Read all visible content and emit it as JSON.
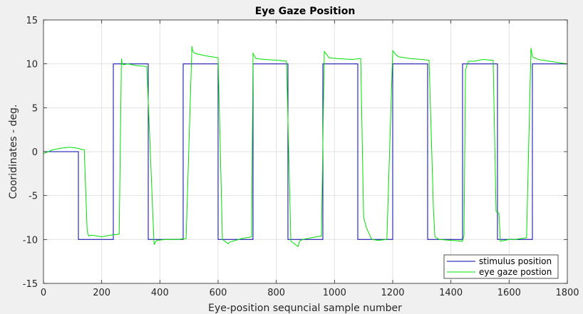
{
  "chart_data": {
    "type": "line",
    "title": "Eye Gaze Position",
    "xlabel": "Eye-position sequncial sample number",
    "ylabel": "Cooridinates - deg.",
    "xlim": [
      0,
      1800
    ],
    "ylim": [
      -15,
      15
    ],
    "xticks": [
      "0",
      "200",
      "400",
      "600",
      "800",
      "1000",
      "1200",
      "1400",
      "1600",
      "1800"
    ],
    "yticks": [
      "-15",
      "-10",
      "-5",
      "0",
      "5",
      "10",
      "15"
    ],
    "grid": true,
    "legend_position": "bottom-right",
    "series": [
      {
        "name": "stimulus position",
        "color": "#0000aa",
        "x": [
          0,
          120,
          120,
          240,
          240,
          360,
          360,
          480,
          480,
          600,
          600,
          720,
          720,
          840,
          840,
          960,
          960,
          1080,
          1080,
          1200,
          1200,
          1320,
          1320,
          1440,
          1440,
          1560,
          1560,
          1680,
          1680,
          1800
        ],
        "y": [
          0,
          0,
          -10,
          -10,
          10,
          10,
          -10,
          -10,
          10,
          10,
          -10,
          -10,
          10,
          10,
          -10,
          -10,
          10,
          10,
          -10,
          -10,
          10,
          10,
          -10,
          -10,
          10,
          10,
          -10,
          -10,
          10,
          10
        ]
      },
      {
        "name": "eye gaze postion",
        "color": "#00e000",
        "x": [
          0,
          10,
          30,
          60,
          90,
          115,
          140,
          150,
          155,
          165,
          200,
          230,
          260,
          268,
          270,
          275,
          290,
          320,
          355,
          380,
          384,
          390,
          420,
          460,
          490,
          510,
          512,
          520,
          560,
          600,
          615,
          635,
          640,
          680,
          715,
          720,
          730,
          760,
          810,
          835,
          850,
          875,
          880,
          890,
          920,
          955,
          965,
          975,
          980,
          1010,
          1060,
          1090,
          1100,
          1110,
          1125,
          1130,
          1150,
          1180,
          1200,
          1212,
          1220,
          1260,
          1300,
          1325,
          1340,
          1345,
          1360,
          1400,
          1440,
          1445,
          1450,
          1455,
          1460,
          1480,
          1510,
          1545,
          1555,
          1565,
          1570,
          1585,
          1600,
          1620,
          1660,
          1675,
          1680,
          1700,
          1740,
          1800
        ],
        "y": [
          -0.2,
          -0.1,
          0.2,
          0.4,
          0.5,
          0.4,
          0.2,
          -9.0,
          -9.6,
          -9.5,
          -9.7,
          -9.5,
          -9.4,
          10.6,
          10.0,
          9.9,
          10.0,
          9.8,
          9.7,
          -10.6,
          -10.3,
          -10.1,
          -10.0,
          -10.0,
          -9.9,
          12.0,
          11.5,
          11.2,
          10.9,
          10.7,
          -10.0,
          -10.5,
          -10.3,
          -9.9,
          -9.7,
          11.2,
          10.6,
          10.5,
          10.4,
          10.3,
          -10.2,
          -10.8,
          -10.2,
          -10.0,
          -9.8,
          -9.6,
          11.4,
          11.0,
          10.7,
          10.6,
          10.5,
          10.6,
          -7.5,
          -8.7,
          -9.8,
          -10.0,
          -10.1,
          -10.0,
          11.5,
          11.0,
          10.8,
          10.6,
          10.5,
          10.4,
          -6.7,
          -9.7,
          -10.0,
          -10.1,
          -10.2,
          -9.5,
          9.3,
          9.8,
          10.3,
          10.3,
          10.5,
          10.4,
          -6.8,
          -7.0,
          -10.2,
          -10.1,
          -10.0,
          -10.0,
          -9.8,
          11.8,
          10.8,
          10.5,
          10.3,
          10.0
        ]
      }
    ]
  }
}
